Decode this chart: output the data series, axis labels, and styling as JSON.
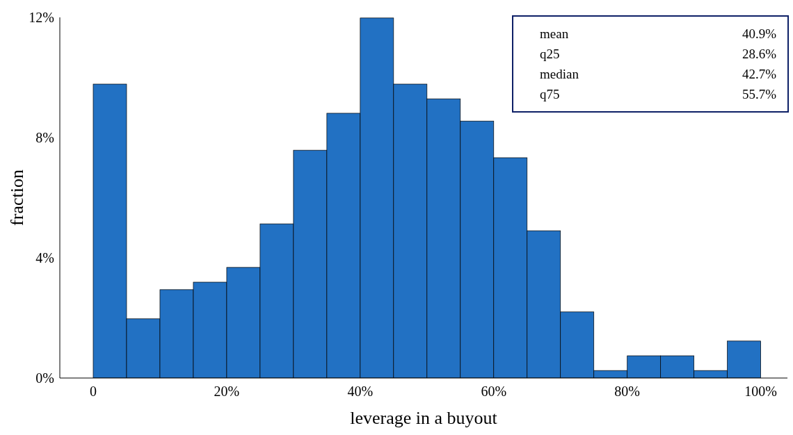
{
  "chart_data": {
    "type": "histogram",
    "xlabel": "leverage in a buyout",
    "ylabel": "fraction",
    "bins": [
      0,
      5,
      10,
      15,
      20,
      25,
      30,
      35,
      40,
      45,
      50,
      55,
      60,
      65,
      70,
      75,
      80,
      85,
      90,
      95,
      100
    ],
    "values": [
      9.78,
      1.97,
      2.94,
      3.19,
      3.68,
      5.13,
      7.58,
      8.81,
      11.98,
      9.78,
      9.29,
      8.55,
      7.33,
      4.9,
      2.2,
      0.25,
      0.74,
      0.74,
      0.25,
      1.23
    ],
    "color": "#2271c3",
    "xlim": [
      -5,
      104
    ],
    "xticks": [
      {
        "value": 0,
        "label": "0"
      },
      {
        "value": 20,
        "label": "20%"
      },
      {
        "value": 40,
        "label": "40%"
      },
      {
        "value": 60,
        "label": "60%"
      },
      {
        "value": 80,
        "label": "80%"
      },
      {
        "value": 100,
        "label": "100%"
      }
    ],
    "ylim": [
      0,
      12
    ],
    "yticks": [
      {
        "value": 0,
        "label": "0%"
      },
      {
        "value": 4,
        "label": "4%"
      },
      {
        "value": 8,
        "label": "8%"
      },
      {
        "value": 12,
        "label": "12%"
      }
    ],
    "grid": false,
    "annotations": [
      "mean",
      "40.9%",
      "q25",
      "28.6%",
      "median",
      "42.7%",
      "q75",
      "55.7%"
    ]
  }
}
